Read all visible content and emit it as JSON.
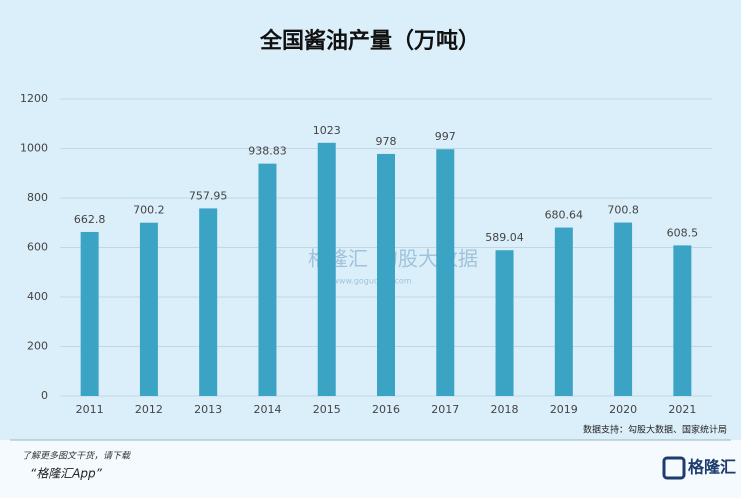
{
  "chart_data": {
    "type": "bar",
    "title": "全国酱油产量（万吨）",
    "categories": [
      "2011",
      "2012",
      "2013",
      "2014",
      "2015",
      "2016",
      "2017",
      "2018",
      "2019",
      "2020",
      "2021"
    ],
    "values": [
      662.8,
      700.2,
      757.95,
      938.83,
      1023,
      978,
      997,
      589.04,
      680.64,
      700.8,
      608.5
    ],
    "color": "#3ba3c4",
    "ylim": [
      0,
      1200
    ],
    "yticks": [
      0,
      200,
      400,
      600,
      800,
      1000,
      1200
    ],
    "grid": true,
    "source": "数据支持：勾股大数据、国家统计局",
    "watermark": {
      "brand": "格隆汇",
      "partner": "勾股大数据",
      "url": "www.gogudata.com"
    }
  },
  "footer": {
    "line1": "了解更多图文干货，请下载",
    "line2": "“格隆汇App”",
    "logo": "格隆汇"
  }
}
